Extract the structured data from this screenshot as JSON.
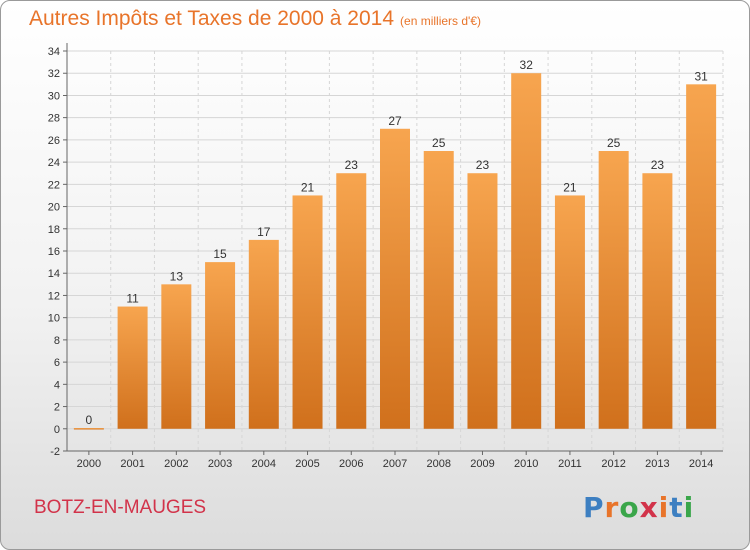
{
  "title": "Autres Impôts et Taxes de 2000 à 2014",
  "subtitle": "(en milliers d'€)",
  "commune": "BOTZ-EN-MAUGES",
  "logo": {
    "letters": [
      "P",
      "r",
      "o",
      "x",
      "i",
      "t",
      "i"
    ],
    "colors": [
      "#3d7fc1",
      "#e8742a",
      "#3aa64a",
      "#d2334a",
      "#e8742a",
      "#3d7fc1",
      "#3aa64a"
    ]
  },
  "chart_data": {
    "type": "bar",
    "categories": [
      "2000",
      "2001",
      "2002",
      "2003",
      "2004",
      "2005",
      "2006",
      "2007",
      "2008",
      "2009",
      "2010",
      "2011",
      "2012",
      "2013",
      "2014"
    ],
    "values": [
      0,
      11,
      13,
      15,
      17,
      21,
      23,
      27,
      25,
      23,
      32,
      21,
      25,
      23,
      31
    ],
    "data_labels": [
      "0",
      "11",
      "13",
      "15",
      "17",
      "21",
      "23",
      "27",
      "25",
      "23",
      "32",
      "21",
      "25",
      "23",
      "31"
    ],
    "ylim": [
      -2,
      34
    ],
    "yticks": [
      -2,
      0,
      2,
      4,
      6,
      8,
      10,
      12,
      14,
      16,
      18,
      20,
      22,
      24,
      26,
      28,
      30,
      32,
      34
    ],
    "grid": true,
    "bar_color_top": "#f7a54f",
    "bar_color_bottom": "#d0701c"
  }
}
